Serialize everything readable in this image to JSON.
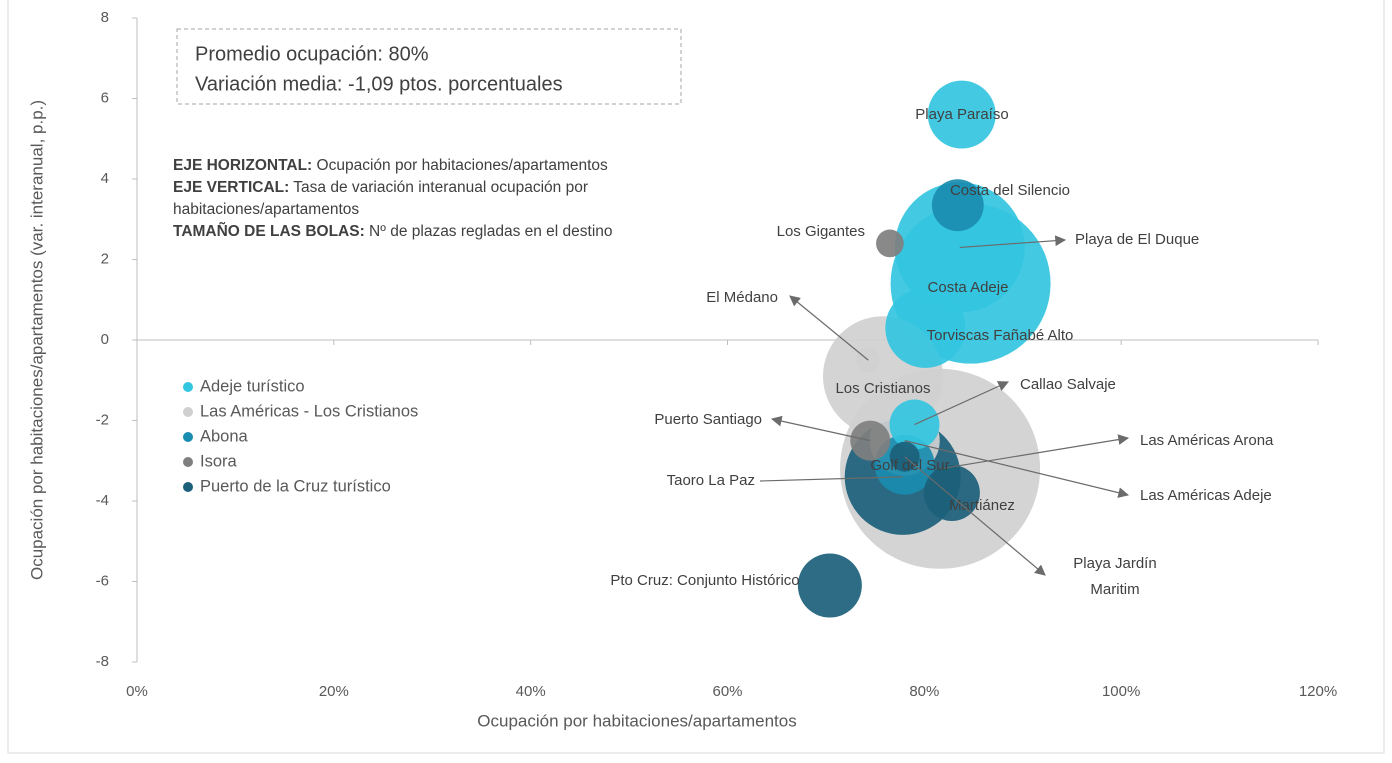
{
  "chart_data": {
    "type": "bubble",
    "xlabel": "Ocupación por habitaciones/apartamentos",
    "ylabel": "Ocupación por habitaciones/apartamentos (var. interanual, p.p.)",
    "xlim": [
      0,
      120
    ],
    "xticks": [
      {
        "value": 0,
        "label": "0%"
      },
      {
        "value": 20,
        "label": "20%"
      },
      {
        "value": 40,
        "label": "40%"
      },
      {
        "value": 60,
        "label": "60%"
      },
      {
        "value": 80,
        "label": "80%"
      },
      {
        "value": 100,
        "label": "100%"
      },
      {
        "value": 120,
        "label": "120%"
      }
    ],
    "ylim": [
      -8,
      8
    ],
    "yticks": [
      -8,
      -6,
      -4,
      -2,
      0,
      2,
      4,
      6,
      8
    ],
    "legend": "left",
    "summary": [
      "Promedio ocupación: 80%",
      "Variación media: -1,09 ptos. porcentuales"
    ],
    "notes": [
      {
        "bold": "EJE HORIZONTAL:",
        "text": "Ocupación por habitaciones/apartamentos"
      },
      {
        "bold": "EJE VERTICAL:",
        "text": "Tasa de variación interanual ocupación por habitaciones/apartamentos"
      },
      {
        "bold": "TAMAÑO DE LAS BOLAS:",
        "text": "Nº de plazas regladas en el destino"
      }
    ],
    "series": [
      {
        "name": "Adeje turístico",
        "color": "#33c6df",
        "labels": [
          "Playa Paraíso",
          "Playa de El Duque",
          "Costa Adeje",
          "Torviscas Fañabé Alto",
          "Callao Salvaje"
        ],
        "x": [
          83.8,
          83.6,
          84.7,
          80.1,
          79
        ],
        "values": [
          5.6,
          2.3,
          1.4,
          0.3,
          -2.1
        ],
        "sizes": [
          7200,
          26400,
          40000,
          10000,
          3900
        ]
      },
      {
        "name": "Las Américas - Los Cristianos",
        "color": "#d0d0d0",
        "labels": [
          "El Médano",
          "Los Cristianos",
          "Las Américas Arona",
          "Las Américas Adeje"
        ],
        "x": [
          74.3,
          75.8,
          81.6,
          78
        ],
        "values": [
          -0.5,
          -0.9,
          -3.2,
          -2.5
        ],
        "sizes": [
          900,
          22500,
          62500,
          7700
        ]
      },
      {
        "name": "Abona",
        "color": "#1a8caf",
        "labels": [
          "Costa del Silencio",
          "Golf del Sur"
        ],
        "x": [
          83.4,
          78
        ],
        "values": [
          3.35,
          -3.1
        ],
        "sizes": [
          4200,
          5600
        ]
      },
      {
        "name": "Isora",
        "color": "#7f7f7f",
        "labels": [
          "Los Gigantes",
          "Puerto Santiago"
        ],
        "x": [
          76.5,
          74.5
        ],
        "values": [
          2.4,
          -2.5
        ],
        "sizes": [
          1200,
          2500
        ]
      },
      {
        "name": "Puerto de la Cruz turístico",
        "color": "#1b5f7a",
        "labels": [
          "Taoro La Paz",
          "Martiánez",
          "Pto Cruz: Conjunto Histórico",
          "Playa Jardín Maritim"
        ],
        "x": [
          77.8,
          82.8,
          70.4,
          78
        ],
        "values": [
          -3.4,
          -3.8,
          -6.1,
          -2.9
        ],
        "sizes": [
          21000,
          4900,
          6400,
          1400
        ]
      }
    ]
  }
}
